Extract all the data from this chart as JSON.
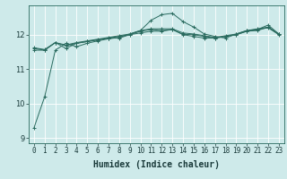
{
  "xlabel": "Humidex (Indice chaleur)",
  "bg_color": "#ceeaea",
  "grid_color": "#ffffff",
  "line_color": "#2a6b5f",
  "xlim": [
    -0.5,
    23.5
  ],
  "ylim": [
    8.85,
    12.85
  ],
  "yticks": [
    9,
    10,
    11,
    12
  ],
  "xticks": [
    0,
    1,
    2,
    3,
    4,
    5,
    6,
    7,
    8,
    9,
    10,
    11,
    12,
    13,
    14,
    15,
    16,
    17,
    18,
    19,
    20,
    21,
    22,
    23
  ],
  "xlabel_fontsize": 7,
  "tick_fontsize": 5.5,
  "series": [
    [
      9.3,
      10.2,
      11.55,
      11.75,
      11.65,
      11.75,
      11.82,
      11.88,
      11.92,
      12.02,
      12.12,
      12.42,
      12.58,
      12.62,
      12.38,
      12.22,
      12.02,
      11.95,
      11.9,
      12.02,
      12.12,
      12.15,
      12.28,
      12.02
    ],
    [
      11.55,
      11.55,
      11.77,
      11.6,
      11.75,
      11.8,
      11.85,
      11.9,
      11.9,
      12.0,
      12.05,
      12.1,
      12.1,
      12.15,
      12.0,
      11.95,
      11.9,
      11.9,
      11.95,
      12.0,
      12.1,
      12.15,
      12.2,
      12.0
    ],
    [
      11.6,
      11.55,
      11.77,
      11.68,
      11.75,
      11.8,
      11.85,
      11.9,
      11.95,
      12.0,
      12.1,
      12.15,
      12.12,
      12.15,
      12.01,
      12.0,
      11.95,
      11.9,
      11.95,
      12.0,
      12.1,
      12.12,
      12.22,
      12.01
    ],
    [
      11.62,
      11.57,
      11.77,
      11.7,
      11.77,
      11.82,
      11.87,
      11.92,
      11.97,
      12.02,
      12.12,
      12.17,
      12.17,
      12.17,
      12.05,
      12.02,
      11.97,
      11.92,
      11.97,
      12.02,
      12.12,
      12.17,
      12.22,
      12.02
    ]
  ]
}
